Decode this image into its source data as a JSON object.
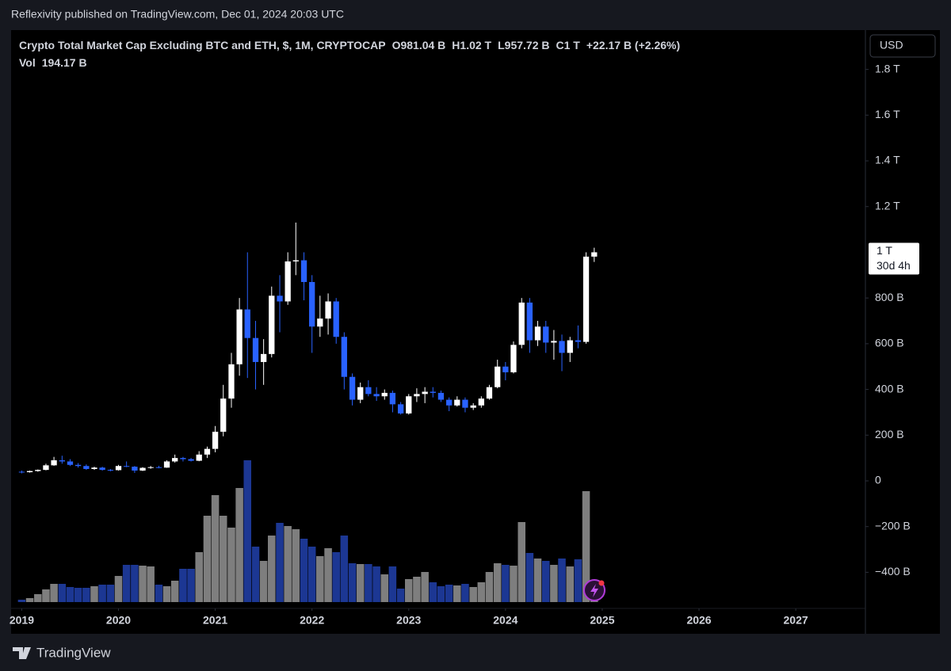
{
  "header": {
    "published": "Reflexivity published on TradingView.com, Dec 01, 2024 20:03 UTC",
    "brand": "TradingView"
  },
  "chart_data": {
    "type": "candlestick",
    "title": "Crypto Total Market Cap Excluding BTC and ETH, $, 1M, CRYPTOCAP",
    "legend_values": [
      "O981.04 B",
      "H1.02 T",
      "L957.72 B",
      "C1 T",
      "+22.17 B (+2.26%)"
    ],
    "volume_label": "Vol",
    "volume_value_label": "194.17 B",
    "currency": "USD",
    "last_price": {
      "value": 1000,
      "label": "1 T",
      "countdown": "30d 4h"
    },
    "up_color": "#ffffff",
    "down_color": "#2962ff",
    "volume_up_color": "#7e7e7e",
    "volume_down_color": "#1c3793",
    "grid": false,
    "categories": [
      null,
      null,
      null,
      null,
      null,
      null,
      null,
      null,
      null,
      null,
      null,
      null,
      null,
      null,
      null,
      null,
      null,
      null,
      null,
      null,
      null,
      null,
      null,
      null,
      null,
      null,
      null,
      null,
      null,
      null,
      null,
      null,
      null,
      null,
      null,
      null,
      null,
      null,
      null,
      null,
      null,
      null,
      null,
      null,
      null,
      null,
      null,
      null,
      null,
      null,
      null,
      null,
      null,
      null,
      null,
      null,
      null,
      null,
      null,
      null,
      null,
      null,
      null,
      null,
      null,
      null,
      null,
      null,
      null,
      null,
      null,
      null
    ],
    "x": [
      2019,
      2019.083,
      2019.167,
      2019.25,
      2019.333,
      2019.417,
      2019.5,
      2019.583,
      2019.667,
      2019.75,
      2019.833,
      2019.917,
      2020,
      2020.083,
      2020.167,
      2020.25,
      2020.333,
      2020.417,
      2020.5,
      2020.583,
      2020.667,
      2020.75,
      2020.833,
      2020.917,
      2021,
      2021.083,
      2021.167,
      2021.25,
      2021.333,
      2021.417,
      2021.5,
      2021.583,
      2021.667,
      2021.75,
      2021.833,
      2021.917,
      2022,
      2022.083,
      2022.167,
      2022.25,
      2022.333,
      2022.417,
      2022.5,
      2022.583,
      2022.667,
      2022.75,
      2022.833,
      2022.917,
      2023,
      2023.083,
      2023.167,
      2023.25,
      2023.333,
      2023.417,
      2023.5,
      2023.583,
      2023.667,
      2023.75,
      2023.833,
      2023.917,
      2024,
      2024.083,
      2024.167,
      2024.25,
      2024.333,
      2024.417,
      2024.5,
      2024.583,
      2024.667,
      2024.75,
      2024.833,
      2024.917
    ],
    "open": [
      40,
      38,
      43,
      48,
      68,
      90,
      85,
      70,
      65,
      52,
      58,
      48,
      47,
      65,
      62,
      45,
      57,
      60,
      58,
      85,
      100,
      95,
      88,
      115,
      140,
      215,
      360,
      510,
      750,
      625,
      520,
      555,
      810,
      785,
      960,
      965,
      870,
      675,
      710,
      785,
      630,
      455,
      355,
      410,
      380,
      370,
      385,
      335,
      295,
      370,
      380,
      390,
      385,
      355,
      330,
      355,
      320,
      330,
      360,
      410,
      500,
      475,
      595,
      780,
      615,
      675,
      605,
      612,
      560,
      615,
      608,
      981.04
    ],
    "high": [
      45,
      45,
      50,
      75,
      105,
      110,
      95,
      78,
      72,
      62,
      62,
      52,
      70,
      85,
      65,
      60,
      65,
      66,
      90,
      115,
      105,
      100,
      130,
      150,
      240,
      420,
      560,
      800,
      1000,
      700,
      620,
      850,
      900,
      1000,
      1130,
      1000,
      900,
      810,
      820,
      800,
      650,
      470,
      430,
      440,
      410,
      400,
      395,
      345,
      380,
      405,
      410,
      410,
      395,
      365,
      370,
      365,
      340,
      370,
      420,
      530,
      520,
      610,
      800,
      800,
      700,
      700,
      660,
      640,
      630,
      680,
      1000,
      1020
    ],
    "low": [
      33,
      36,
      40,
      46,
      66,
      75,
      65,
      58,
      48,
      48,
      45,
      42,
      45,
      60,
      35,
      43,
      53,
      55,
      57,
      80,
      85,
      85,
      86,
      100,
      125,
      195,
      320,
      460,
      450,
      400,
      420,
      540,
      650,
      770,
      900,
      790,
      560,
      630,
      640,
      600,
      400,
      330,
      340,
      370,
      350,
      355,
      300,
      290,
      290,
      345,
      340,
      365,
      345,
      305,
      325,
      300,
      310,
      320,
      355,
      405,
      440,
      470,
      580,
      560,
      590,
      560,
      530,
      480,
      520,
      580,
      600,
      957.72
    ],
    "close": [
      38,
      43,
      48,
      68,
      90,
      85,
      70,
      65,
      52,
      58,
      48,
      47,
      65,
      62,
      45,
      57,
      60,
      58,
      85,
      100,
      95,
      88,
      115,
      140,
      215,
      360,
      510,
      750,
      625,
      520,
      555,
      810,
      785,
      960,
      965,
      870,
      675,
      710,
      785,
      630,
      455,
      355,
      410,
      380,
      370,
      385,
      335,
      295,
      370,
      380,
      390,
      385,
      355,
      330,
      355,
      320,
      330,
      360,
      410,
      500,
      475,
      595,
      780,
      615,
      675,
      605,
      612,
      560,
      615,
      608,
      981.04,
      1000
    ],
    "volume": [
      60,
      100,
      200,
      320,
      460,
      460,
      380,
      360,
      360,
      400,
      440,
      440,
      660,
      940,
      940,
      920,
      900,
      440,
      400,
      540,
      840,
      840,
      1260,
      2180,
      2700,
      2180,
      1880,
      2880,
      3580,
      1400,
      1040,
      1680,
      2000,
      1920,
      1840,
      1600,
      1400,
      1160,
      1360,
      1260,
      1680,
      980,
      960,
      960,
      900,
      700,
      900,
      340,
      580,
      640,
      760,
      500,
      400,
      440,
      420,
      460,
      380,
      500,
      760,
      980,
      940,
      920,
      2020,
      1240,
      1100,
      1040,
      940,
      1100,
      900,
      1080,
      2800,
      194.17
    ],
    "volume_lim": [
      0,
      14440
    ],
    "xlim": [
      2018.89,
      2027.72
    ],
    "xticks": [
      2019,
      2020,
      2021,
      2022,
      2023,
      2024,
      2025,
      2026,
      2027
    ],
    "ylim": [
      -558,
      1972
    ],
    "yticks": [
      {
        "value": -400,
        "label": "−400 B"
      },
      {
        "value": -200,
        "label": "−200 B"
      },
      0,
      {
        "value": 200,
        "label": "200 B"
      },
      {
        "value": 400,
        "label": "400 B"
      },
      {
        "value": 600,
        "label": "600 B"
      },
      {
        "value": 800,
        "label": "800 B"
      },
      {
        "value": 1200,
        "label": "1.2 T"
      },
      {
        "value": 1400,
        "label": "1.4 T"
      },
      {
        "value": 1600,
        "label": "1.6 T"
      },
      {
        "value": 1800,
        "label": "1.8 T"
      }
    ]
  }
}
